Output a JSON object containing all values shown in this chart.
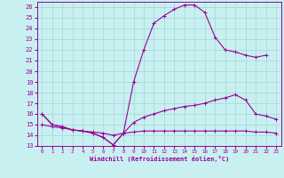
{
  "xlabel": "Windchill (Refroidissement éolien,°C)",
  "background_color": "#c8f0f0",
  "grid_color": "#a8dada",
  "line_color": "#990099",
  "xlim": [
    -0.5,
    23.5
  ],
  "ylim": [
    13,
    26.5
  ],
  "yticks": [
    13,
    14,
    15,
    16,
    17,
    18,
    19,
    20,
    21,
    22,
    23,
    24,
    25,
    26
  ],
  "xticks": [
    0,
    1,
    2,
    3,
    4,
    5,
    6,
    7,
    8,
    9,
    10,
    11,
    12,
    13,
    14,
    15,
    16,
    17,
    18,
    19,
    20,
    21,
    22,
    23
  ],
  "curve1_x": [
    0,
    1,
    2,
    3,
    4,
    5,
    6,
    7,
    8,
    9,
    10,
    11,
    12,
    13,
    14,
    15,
    16,
    17,
    18,
    19,
    20,
    21,
    22
  ],
  "curve1_y": [
    16.0,
    15.0,
    14.8,
    14.5,
    14.4,
    14.2,
    13.8,
    13.1,
    14.2,
    19.0,
    22.0,
    24.5,
    25.2,
    25.8,
    26.2,
    26.2,
    25.5,
    23.2,
    22.0,
    21.8,
    21.5,
    21.3,
    21.5
  ],
  "curve2_x": [
    0,
    1,
    2,
    3,
    4,
    5,
    6,
    7,
    8,
    9,
    10,
    11,
    12,
    13,
    14,
    15,
    16,
    17,
    18,
    19,
    20,
    21,
    22,
    23
  ],
  "curve2_y": [
    16.0,
    15.0,
    14.8,
    14.5,
    14.4,
    14.2,
    13.8,
    13.1,
    14.2,
    15.2,
    15.7,
    16.0,
    16.3,
    16.5,
    16.7,
    16.8,
    17.0,
    17.3,
    17.5,
    17.8,
    17.3,
    16.0,
    15.8,
    15.5
  ],
  "curve3_x": [
    0,
    1,
    2,
    3,
    4,
    5,
    6,
    7,
    8,
    9,
    10,
    11,
    12,
    13,
    14,
    15,
    16,
    17,
    18,
    19,
    20,
    21,
    22,
    23
  ],
  "curve3_y": [
    15.0,
    14.8,
    14.7,
    14.5,
    14.4,
    14.3,
    14.2,
    14.0,
    14.2,
    14.3,
    14.4,
    14.4,
    14.4,
    14.4,
    14.4,
    14.4,
    14.4,
    14.4,
    14.4,
    14.4,
    14.4,
    14.3,
    14.3,
    14.2
  ]
}
